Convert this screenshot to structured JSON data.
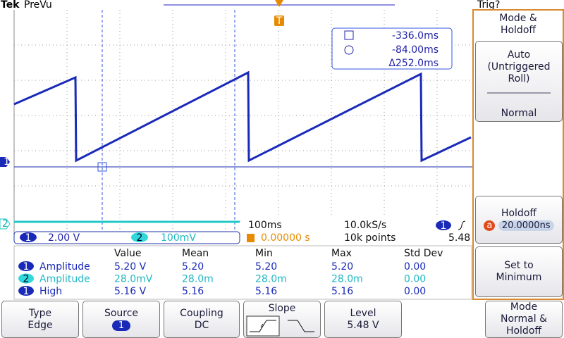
{
  "header": {
    "brand": "Tek",
    "status": "PreVu",
    "trigger_state": "Trig?"
  },
  "markers": {
    "trigger": "T",
    "ch1": "1",
    "ch2": "2"
  },
  "cursors": {
    "a": "-336.0ms",
    "b": "-84.00ms",
    "delta": "Δ252.0ms"
  },
  "status_bar": {
    "ch1_badge": "1",
    "ch1_scale": "2.00 V",
    "ch2_badge": "2",
    "ch2_scale": "100mV",
    "timebase": "100ms",
    "sample_rate": "10.0kS/s",
    "trigger_position": "0.00000 s",
    "record_length": "10k points",
    "trigger_source": "1",
    "trigger_level": "5.48 V"
  },
  "measurements": {
    "headers": [
      "Value",
      "Mean",
      "Min",
      "Max",
      "Std Dev"
    ],
    "rows": [
      {
        "channel": "1",
        "name": "Amplitude",
        "cells": [
          "5.20 V",
          "5.20",
          "5.20",
          "5.20",
          "0.00"
        ]
      },
      {
        "channel": "2",
        "name": "Amplitude",
        "cells": [
          "28.0mV",
          "28.0m",
          "28.0m",
          "28.0m",
          "0.00"
        ]
      },
      {
        "channel": "1",
        "name": "High",
        "cells": [
          "5.16 V",
          "5.16",
          "5.16",
          "5.16",
          "0.00"
        ]
      }
    ]
  },
  "side_menu": {
    "title": "Mode & Holdoff",
    "auto": "Auto (Untriggered Roll)",
    "normal": "Normal",
    "holdoff": "Holdoff",
    "holdoff_badge": "a",
    "holdoff_value": "20.0000ns",
    "set_min": "Set to Minimum"
  },
  "bottom_menu": {
    "type_label": "Type",
    "type_value": "Edge",
    "source_label": "Source",
    "source_value": "1",
    "coupling_label": "Coupling",
    "coupling_value": "DC",
    "slope_label": "Slope",
    "level_label": "Level",
    "level_value": "5.48 V",
    "mode": "Mode Normal & Holdoff"
  }
}
